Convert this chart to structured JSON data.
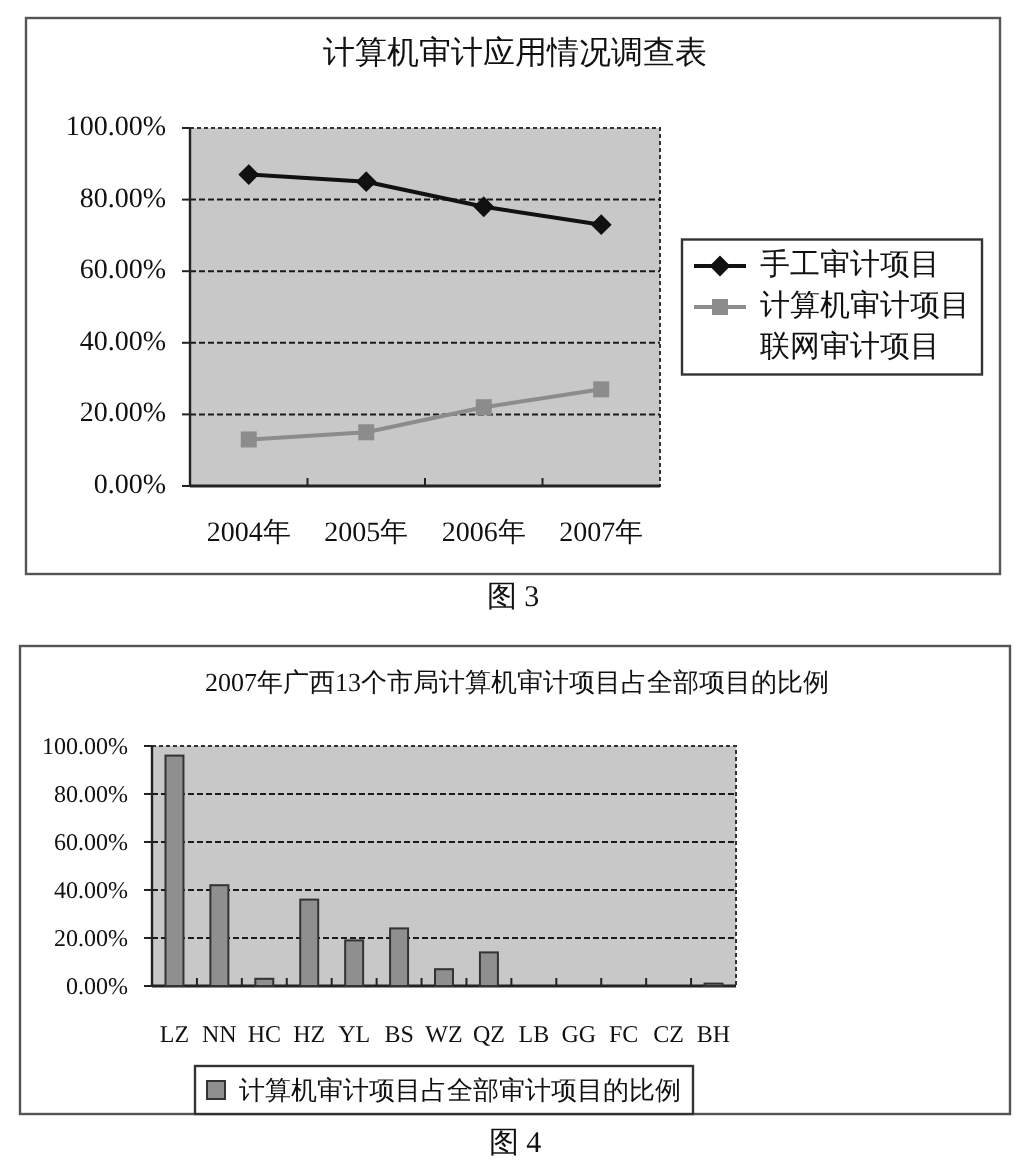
{
  "chart_data": [
    {
      "type": "line",
      "title": "计算机审计应用情况调查表",
      "categories": [
        "2004年",
        "2005年",
        "2006年",
        "2007年"
      ],
      "series": [
        {
          "name": "手工审计项目",
          "color": "#111111",
          "marker": "diamond",
          "values": [
            87,
            85,
            78,
            73
          ]
        },
        {
          "name": "计算机审计项目",
          "color": "#8c8c8c",
          "marker": "square",
          "values": [
            13,
            15,
            22,
            27
          ]
        },
        {
          "name": "联网审计项目",
          "values": [
            null,
            null,
            null,
            null
          ]
        }
      ],
      "ylim": [
        0,
        100
      ],
      "yticks": [
        {
          "value": 0,
          "label": "0.00%"
        },
        {
          "value": 20,
          "label": "20.00%"
        },
        {
          "value": 40,
          "label": "40.00%"
        },
        {
          "value": 60,
          "label": "60.00%"
        },
        {
          "value": 80,
          "label": "80.00%"
        },
        {
          "value": 100,
          "label": "100.00%"
        }
      ],
      "grid": "y",
      "legend": "right",
      "annotations": [
        "图 3"
      ]
    },
    {
      "type": "bar",
      "title": "2007年广西13个市局计算机审计项目占全部项目的比例",
      "categories": [
        "LZ",
        "NN",
        "HC",
        "HZ",
        "YL",
        "BS",
        "WZ",
        "QZ",
        "LB",
        "GG",
        "FC",
        "CZ",
        "BH"
      ],
      "series": [
        {
          "name": "计算机审计项目占全部审计项目的比例",
          "color": "#8f8f8f",
          "values": [
            96,
            42,
            3,
            36,
            19,
            24,
            7,
            14,
            0,
            0,
            0,
            0,
            1
          ]
        }
      ],
      "ylim": [
        0,
        100
      ],
      "yticks": [
        {
          "value": 0,
          "label": "0.00%"
        },
        {
          "value": 20,
          "label": "20.00%"
        },
        {
          "value": 40,
          "label": "40.00%"
        },
        {
          "value": 60,
          "label": "60.00%"
        },
        {
          "value": 80,
          "label": "80.00%"
        },
        {
          "value": 100,
          "label": "100.00%"
        }
      ],
      "grid": "y",
      "legend": "bottom",
      "annotations": [
        "图 4"
      ]
    }
  ]
}
